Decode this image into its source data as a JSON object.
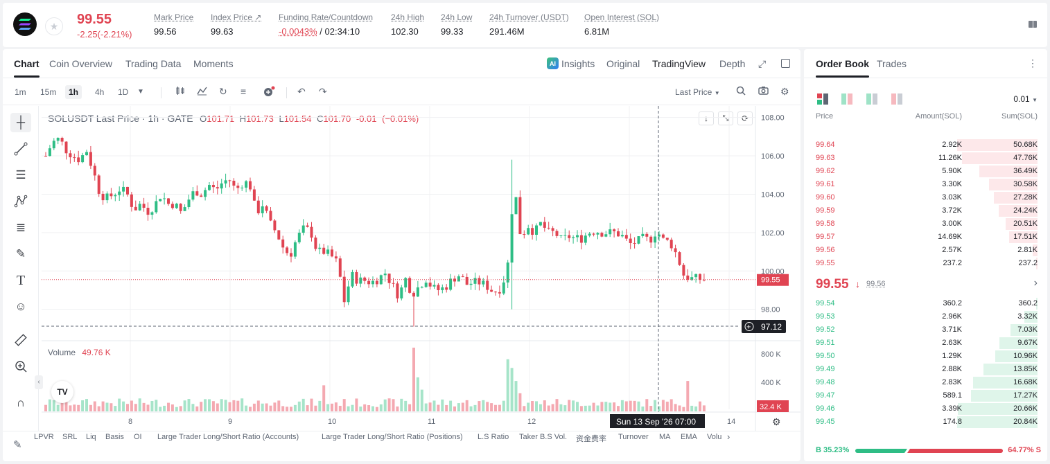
{
  "header": {
    "last_price": "99.55",
    "change": "-2.25(-2.21%)",
    "stats": [
      {
        "label": "Mark Price",
        "value": "99.56"
      },
      {
        "label": "Index Price ↗",
        "value": "99.63"
      },
      {
        "label": "Funding Rate/Countdown",
        "value": "-0.0043%",
        "value2": "/ 02:34:10"
      },
      {
        "label": "24h High",
        "value": "102.30"
      },
      {
        "label": "24h Low",
        "value": "99.33"
      },
      {
        "label": "24h Turnover (USDT)",
        "value": "291.46M"
      },
      {
        "label": "Open Interest (SOL)",
        "value": "6.81M"
      }
    ]
  },
  "chart_tabs": [
    "Chart",
    "Coin Overview",
    "Trading Data",
    "Moments"
  ],
  "view_tabs": {
    "insights": "Insights",
    "original": "Original",
    "tradingview": "TradingView",
    "depth": "Depth",
    "ai_badge": "AI"
  },
  "intervals": [
    "1m",
    "15m",
    "1h",
    "4h",
    "1D"
  ],
  "price_type": "Last Price",
  "legend": {
    "symbol": "SOLUSDT Last Price · 1h · GATE",
    "o_label": "O",
    "o": "101.71",
    "h_label": "H",
    "h": "101.73",
    "l_label": "L",
    "l": "101.54",
    "c_label": "C",
    "c": "101.70",
    "chg": "-0.01",
    "chg_pct": "(−0.01%)",
    "volume_label": "Volume",
    "volume": "49.76 K"
  },
  "price_axis": [
    "108.00",
    "106.00",
    "104.00",
    "102.00",
    "100.00",
    "98.00"
  ],
  "volume_axis": [
    "800 K",
    "400 K"
  ],
  "current_price_tag": "99.55",
  "crosshair_price_tag": "97.12",
  "volume_tag": "32.4 K",
  "crosshair_time": "Sun 13 Sep '26   07:00",
  "time_axis": [
    "8",
    "9",
    "10",
    "11",
    "12",
    "14"
  ],
  "tv_logo": "TV",
  "indicators": [
    "LPVR",
    "SRL",
    "Liq",
    "Basis",
    "OI",
    "Large Trader Long/Short Ratio (Accounts)",
    "Large Trader Long/Short Ratio (Positions)",
    "L.S Ratio",
    "Taker B.S Vol.",
    "资金费率",
    "Turnover",
    "MA",
    "EMA",
    "Volu"
  ],
  "colors": {
    "up": "#2ebd85",
    "down": "#e04452",
    "accent": "#1e2026"
  },
  "order_book": {
    "tabs": [
      "Order Book",
      "Trades"
    ],
    "precision": "0.01",
    "columns": {
      "price": "Price",
      "amount": "Amount(SOL)",
      "sum": "Sum(SOL)"
    },
    "asks": [
      {
        "price": "99.64",
        "amount": "2.92K",
        "sum": "50.68K",
        "depth": 1.0
      },
      {
        "price": "99.63",
        "amount": "11.26K",
        "sum": "47.76K",
        "depth": 0.94
      },
      {
        "price": "99.62",
        "amount": "5.90K",
        "sum": "36.49K",
        "depth": 0.72
      },
      {
        "price": "99.61",
        "amount": "3.30K",
        "sum": "30.58K",
        "depth": 0.6
      },
      {
        "price": "99.60",
        "amount": "3.03K",
        "sum": "27.28K",
        "depth": 0.54
      },
      {
        "price": "99.59",
        "amount": "3.72K",
        "sum": "24.24K",
        "depth": 0.48
      },
      {
        "price": "99.58",
        "amount": "3.00K",
        "sum": "20.51K",
        "depth": 0.4
      },
      {
        "price": "99.57",
        "amount": "14.69K",
        "sum": "17.51K",
        "depth": 0.35
      },
      {
        "price": "99.56",
        "amount": "2.57K",
        "sum": "2.81K",
        "depth": 0.06
      },
      {
        "price": "99.55",
        "amount": "237.2",
        "sum": "237.2",
        "depth": 0.005
      }
    ],
    "mid_price": "99.55",
    "mid_mark": "99.56",
    "bids": [
      {
        "price": "99.54",
        "amount": "360.2",
        "sum": "360.2",
        "depth": 0.02
      },
      {
        "price": "99.53",
        "amount": "2.96K",
        "sum": "3.32K",
        "depth": 0.16
      },
      {
        "price": "99.52",
        "amount": "3.71K",
        "sum": "7.03K",
        "depth": 0.34
      },
      {
        "price": "99.51",
        "amount": "2.63K",
        "sum": "9.67K",
        "depth": 0.47
      },
      {
        "price": "99.50",
        "amount": "1.29K",
        "sum": "10.96K",
        "depth": 0.53
      },
      {
        "price": "99.49",
        "amount": "2.88K",
        "sum": "13.85K",
        "depth": 0.67
      },
      {
        "price": "99.48",
        "amount": "2.83K",
        "sum": "16.68K",
        "depth": 0.8
      },
      {
        "price": "99.47",
        "amount": "589.1",
        "sum": "17.27K",
        "depth": 0.83
      },
      {
        "price": "99.46",
        "amount": "3.39K",
        "sum": "20.66K",
        "depth": 0.99
      },
      {
        "price": "99.45",
        "amount": "174.8",
        "sum": "20.84K",
        "depth": 1.0
      }
    ],
    "buy_ratio": "B 35.23%",
    "sell_ratio": "64.77% S",
    "buy_fraction": 0.3523
  }
}
